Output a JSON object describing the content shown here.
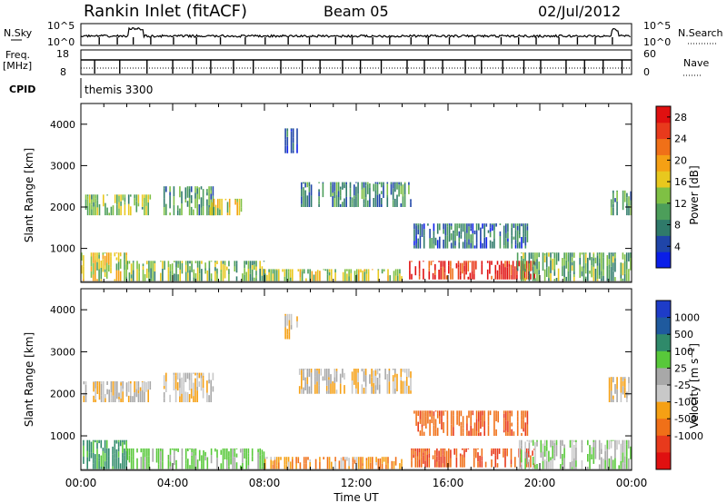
{
  "header": {
    "station": "Rankin Inlet (fitACF)",
    "beam": "Beam 05",
    "date": "02/Jul/2012"
  },
  "top_panels": {
    "nsky_label": "N.Sky",
    "nsky_ticks": [
      "10^5",
      "10^0"
    ],
    "nsearch_label": "N.Search",
    "nsearch_ticks": [
      "10^5",
      "10^0"
    ],
    "freq_label_1": "Freq.",
    "freq_label_2": "[MHz]",
    "freq_ticks": [
      "18",
      "8"
    ],
    "nave_label": "Nave",
    "nave_ticks": [
      "60",
      "0"
    ],
    "cpid_label": "CPID",
    "cpid_value": "themis 3300"
  },
  "chart_data": [
    {
      "type": "heatmap",
      "panel": "power",
      "ylabel": "Slant Range [km]",
      "xlabel": "Time UT",
      "xticks": [
        "00:00",
        "04:00",
        "08:00",
        "12:00",
        "16:00",
        "20:00",
        "00:00"
      ],
      "xlim_hours": [
        0,
        24
      ],
      "yticks": [
        1000,
        2000,
        3000,
        4000
      ],
      "ylim": [
        180,
        4500
      ],
      "colorbar": {
        "label": "Power [dB]",
        "ticks": [
          4,
          8,
          12,
          16,
          20,
          24,
          28
        ],
        "range": [
          0,
          30
        ],
        "colors": [
          "#0a1ee8",
          "#1f45a8",
          "#2f7a6a",
          "#4c9e5a",
          "#7fc044",
          "#e8c81e",
          "#f5a014",
          "#f07018",
          "#e83a1c",
          "#e01010"
        ]
      },
      "regions": [
        {
          "t0": 0.1,
          "t1": 3.0,
          "r0": 1800,
          "r1": 2300,
          "value": 13
        },
        {
          "t0": 3.6,
          "t1": 5.8,
          "r0": 1800,
          "r1": 2500,
          "value": 10
        },
        {
          "t0": 5.6,
          "t1": 7.0,
          "r0": 1800,
          "r1": 2200,
          "value": 16
        },
        {
          "t0": 0.0,
          "t1": 2.0,
          "r0": 200,
          "r1": 900,
          "value": 16
        },
        {
          "t0": 2.0,
          "t1": 8.0,
          "r0": 200,
          "r1": 700,
          "value": 12
        },
        {
          "t0": 8.0,
          "t1": 14.0,
          "r0": 200,
          "r1": 500,
          "value": 14
        },
        {
          "t0": 14.3,
          "t1": 19.8,
          "r0": 250,
          "r1": 700,
          "value": 27
        },
        {
          "t0": 19.0,
          "t1": 24.0,
          "r0": 200,
          "r1": 900,
          "value": 11
        },
        {
          "t0": 9.5,
          "t1": 14.5,
          "r0": 2000,
          "r1": 2600,
          "value": 8
        },
        {
          "t0": 14.5,
          "t1": 19.5,
          "r0": 1000,
          "r1": 1600,
          "value": 7
        },
        {
          "t0": 8.8,
          "t1": 9.4,
          "r0": 3300,
          "r1": 3900,
          "value": 5
        },
        {
          "t0": 23.0,
          "t1": 24.0,
          "r0": 1800,
          "r1": 2400,
          "value": 9
        }
      ]
    },
    {
      "type": "heatmap",
      "panel": "velocity",
      "ylabel": "Slant Range [km]",
      "xlabel": "Time UT",
      "xticks": [
        "00:00",
        "04:00",
        "08:00",
        "12:00",
        "16:00",
        "20:00",
        "00:00"
      ],
      "xlim_hours": [
        0,
        24
      ],
      "yticks": [
        1000,
        2000,
        3000,
        4000
      ],
      "ylim": [
        180,
        4500
      ],
      "colorbar": {
        "label": "Velocity [m s^-1]",
        "ticks": [
          "1000",
          "500",
          "100",
          "25",
          "-25",
          "-100",
          "-500",
          "-1000"
        ],
        "colors": [
          "#1e3cc8",
          "#1f5a9e",
          "#2f8a6a",
          "#58c83a",
          "#a8a8a8",
          "#c8c8c8",
          "#f5a014",
          "#f07018",
          "#e83a1c",
          "#e01010"
        ]
      },
      "regions": [
        {
          "t0": 0.1,
          "t1": 3.0,
          "r0": 1800,
          "r1": 2300,
          "value": 0
        },
        {
          "t0": 3.6,
          "t1": 5.8,
          "r0": 1800,
          "r1": 2500,
          "value": 0
        },
        {
          "t0": 0.0,
          "t1": 2.0,
          "r0": 200,
          "r1": 900,
          "value": 300
        },
        {
          "t0": 2.0,
          "t1": 8.0,
          "r0": 200,
          "r1": 700,
          "value": 150
        },
        {
          "t0": 8.0,
          "t1": 14.0,
          "r0": 200,
          "r1": 500,
          "value": -80
        },
        {
          "t0": 14.3,
          "t1": 19.8,
          "r0": 250,
          "r1": 700,
          "value": -250
        },
        {
          "t0": 14.5,
          "t1": 19.5,
          "r0": 1000,
          "r1": 1600,
          "value": -200
        },
        {
          "t0": 9.5,
          "t1": 14.5,
          "r0": 2000,
          "r1": 2600,
          "value": 0
        },
        {
          "t0": 19.0,
          "t1": 24.0,
          "r0": 200,
          "r1": 900,
          "value": 80
        },
        {
          "t0": 8.8,
          "t1": 9.4,
          "r0": 3300,
          "r1": 3900,
          "value": 0
        },
        {
          "t0": 23.0,
          "t1": 24.0,
          "r0": 1800,
          "r1": 2400,
          "value": 0
        }
      ]
    }
  ]
}
